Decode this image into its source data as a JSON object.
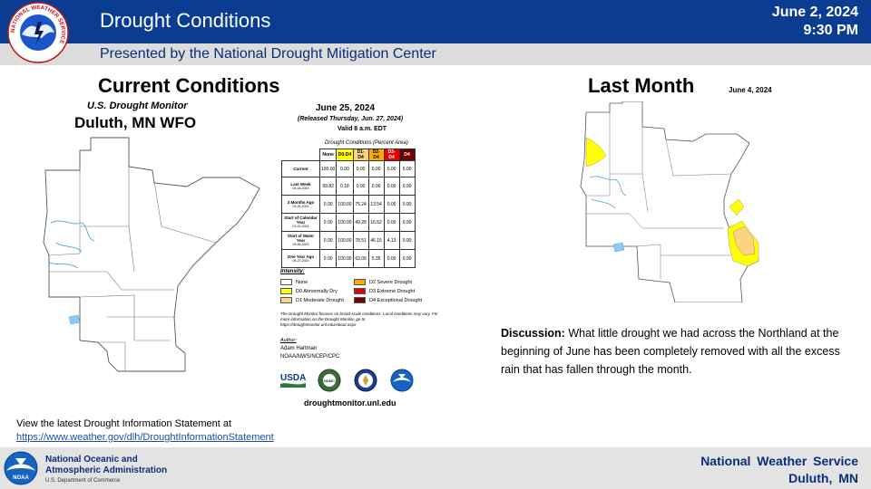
{
  "header": {
    "title": "Drought Conditions",
    "subtitle": "Presented by the National Drought Mitigation Center",
    "date": "June 2, 2024",
    "time": "9:30 PM",
    "logo_text": "NATIONAL WEATHER SERVICE"
  },
  "sections": {
    "current_heading": "Current Conditions",
    "last_heading": "Last Month",
    "last_date": "June 4, 2024"
  },
  "monitor": {
    "product": "U.S. Drought Monitor",
    "region": "Duluth, MN WFO",
    "date": "June 25, 2024",
    "released": "(Released Thursday, Jun. 27, 2024)",
    "valid": "Valid 8 a.m. EDT",
    "table_title": "Drought Conditions (Percent Area)",
    "columns": [
      "None",
      "D0-D4",
      "D1-D4",
      "D2-D4",
      "D3-D4",
      "D4"
    ],
    "column_colors": [
      "#ffffff",
      "#ffff00",
      "#fcd37f",
      "#ffaa00",
      "#e60000",
      "#730000"
    ],
    "rows": [
      {
        "label": "Current",
        "sub": "",
        "values": [
          "100.00",
          "0.00",
          "0.00",
          "0.00",
          "0.00",
          "0.00"
        ]
      },
      {
        "label": "Last Week",
        "sub": "06-18-2024",
        "values": [
          "99.82",
          "0.18",
          "0.00",
          "0.00",
          "0.00",
          "0.00"
        ]
      },
      {
        "label": "3 Months Ago",
        "sub": "03-26-2024",
        "values": [
          "0.00",
          "100.00",
          "75.24",
          "13.54",
          "0.00",
          "0.00"
        ]
      },
      {
        "label": "Start of Calendar Year",
        "sub": "01-02-2024",
        "values": [
          "0.00",
          "100.00",
          "49.28",
          "16.52",
          "0.00",
          "0.00"
        ]
      },
      {
        "label": "Start of Water Year",
        "sub": "09-26-2023",
        "values": [
          "0.00",
          "100.00",
          "78.51",
          "46.15",
          "4.13",
          "0.00"
        ]
      },
      {
        "label": "One Year Ago",
        "sub": "06-27-2023",
        "values": [
          "0.00",
          "100.00",
          "63.09",
          "5.35",
          "0.00",
          "0.00"
        ]
      }
    ],
    "intensity_label": "Intensity:",
    "legend": [
      {
        "label": "None",
        "color": "#ffffff"
      },
      {
        "label": "D0 Abnormally Dry",
        "color": "#ffff00"
      },
      {
        "label": "D1 Moderate Drought",
        "color": "#fcd37f"
      },
      {
        "label": "D2 Severe Drought",
        "color": "#ffaa00"
      },
      {
        "label": "D3 Extreme Drought",
        "color": "#e60000"
      },
      {
        "label": "D4 Exceptional Drought",
        "color": "#730000"
      }
    ],
    "note": "The Drought Monitor focuses on broad-scale conditions. Local conditions may vary. For more information on the Drought Monitor, go to https://droughtmonitor.unl.edu/About.aspx",
    "author_label": "Author:",
    "author_name": "Adam Hartman",
    "author_org": "NOAA/NWS/NCEP/CPC",
    "usda": "USDA",
    "ndmc": "NDMC",
    "url": "droughtmonitor.unl.edu"
  },
  "discussion": {
    "label": "Discussion:",
    "text": " What little drought we had across the Northland at the beginning of June has been completely removed with all the excess rain that has fallen through the month."
  },
  "footer": {
    "view_text": "View the latest Drought Information Statement at",
    "view_link": "https://www.weather.gov/dlh/DroughtInformationStatement",
    "noaa_line1": "National Oceanic and",
    "noaa_line2": "Atmospheric Administration",
    "noaa_dept": "U.S. Department of Commerce",
    "noaa_logo": "NOAA",
    "nws_line1": "National Weather Service",
    "nws_line2": "Duluth, MN"
  }
}
